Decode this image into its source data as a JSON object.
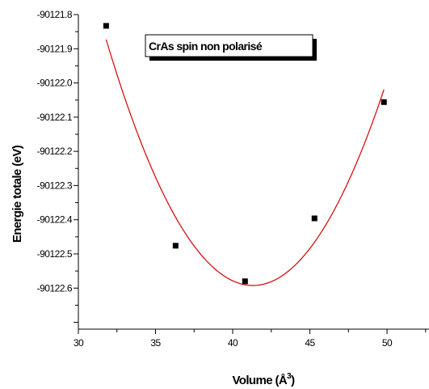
{
  "chart_data": {
    "type": "scatter",
    "legend_text": "CrAs spin non polarisé",
    "legend_position": "top",
    "xlabel_main": "Volume (Å",
    "xlabel_sup": "3",
    "xlabel_close": ")",
    "ylabel": "Energie totale (eV)",
    "xlim": [
      30,
      53
    ],
    "ylim": [
      -90122.72,
      -90121.8
    ],
    "x_ticks": [
      "30",
      "35",
      "40",
      "45",
      "50"
    ],
    "y_ticks": [
      "-90121.8",
      "-90121.9",
      "-90122.0",
      "-90122.1",
      "-90122.2",
      "-90122.3",
      "-90122.4",
      "-90122.5",
      "-90122.6"
    ],
    "series": [
      {
        "marker_color": "#000000",
        "points": [
          {
            "x": 31.8,
            "y": -90121.833
          },
          {
            "x": 36.3,
            "y": -90122.476
          },
          {
            "x": 40.8,
            "y": -90122.58
          },
          {
            "x": 45.3,
            "y": -90122.396
          },
          {
            "x": 49.8,
            "y": -90122.056
          }
        ]
      }
    ],
    "fit_color": "#d40000",
    "grid": false
  }
}
